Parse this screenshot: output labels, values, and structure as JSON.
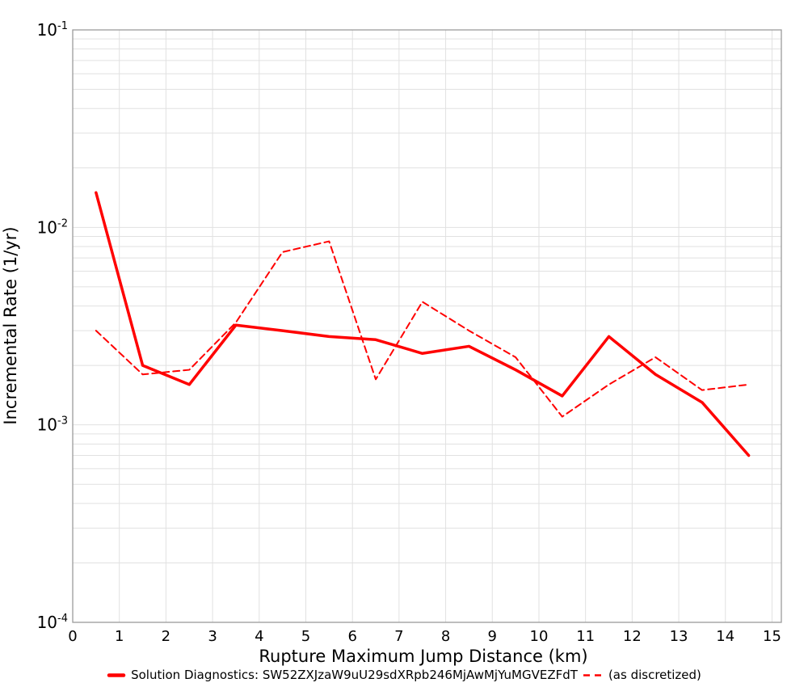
{
  "colors": {
    "series": "#FF0000",
    "gridline": "#E1E1E1",
    "border": "#9B9B9B",
    "text": "#000000",
    "background": "#FFFFFF"
  },
  "chart_data": {
    "type": "line",
    "xlabel": "Rupture Maximum Jump Distance (km)",
    "ylabel": "Incremental Rate (1/yr)",
    "xlim": [
      0,
      15.2
    ],
    "ylim": [
      0.0001,
      0.1
    ],
    "ylim_log10": [
      -4,
      -1
    ],
    "log_y": true,
    "grid": true,
    "legend_position": "bottom-center",
    "x_ticks": [
      0,
      1,
      2,
      3,
      4,
      5,
      6,
      7,
      8,
      9,
      10,
      11,
      12,
      13,
      14,
      15
    ],
    "y_tick_exponents": [
      -1,
      -2,
      -3,
      -4
    ],
    "x": [
      0.5,
      1.5,
      2.5,
      3.5,
      4.5,
      5.5,
      6.5,
      7.5,
      8.5,
      9.5,
      10.5,
      11.5,
      12.5,
      13.5,
      14.5
    ],
    "series": [
      {
        "name": "Solution Diagnostics: SW52ZXJzaW9uU29sdXRpb246MjAwMjYuMGVEZFdT",
        "style": "solid",
        "color": "#FF0000",
        "stroke_width": 3.5,
        "values": [
          0.015,
          0.002,
          0.0016,
          0.0032,
          0.003,
          0.0028,
          0.0027,
          0.0023,
          0.0025,
          0.0019,
          0.0014,
          0.0028,
          0.0018,
          0.0013,
          0.0007
        ]
      },
      {
        "name": "(as discretized)",
        "style": "dashed",
        "color": "#FF0000",
        "stroke_width": 2,
        "values": [
          0.003,
          0.0018,
          0.0019,
          0.0033,
          0.0075,
          0.0085,
          0.0017,
          0.0042,
          0.003,
          0.0022,
          0.0011,
          0.0016,
          0.0022,
          0.0015,
          0.0016
        ]
      }
    ]
  }
}
